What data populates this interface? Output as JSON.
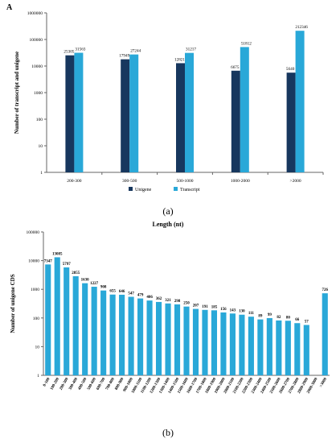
{
  "panels": [
    {
      "panel_label": "A",
      "caption": "(a)",
      "chart_data": {
        "type": "bar",
        "title": "",
        "xlabel": "",
        "ylabel": "Number of transcript and unigene",
        "yscale": "log",
        "ylim": [
          1,
          1000000
        ],
        "yticks": [
          "1",
          "10",
          "100",
          "1000",
          "10000",
          "100000",
          "1000000"
        ],
        "categories": [
          "200-300",
          "300-500",
          "500-1000",
          "1000-2000",
          ">2000"
        ],
        "series": [
          {
            "name": "Unigene",
            "color": "#17375e",
            "values": [
              25305,
              17949,
              12821,
              6675,
              5640
            ]
          },
          {
            "name": "Transcript",
            "color": "#29a8d8",
            "values": [
              31563,
              27244,
              31217,
              51812,
              212346
            ]
          }
        ],
        "legend_position": "bottom",
        "grid": false
      }
    },
    {
      "panel_label": "",
      "caption": "(b)",
      "chart_data": {
        "type": "bar",
        "title": "Length (nt)",
        "xlabel": "",
        "ylabel": "Number of unigene CDS",
        "yscale": "log",
        "ylim": [
          1,
          100000
        ],
        "yticks": [
          "1",
          "10",
          "100",
          "1000",
          "10000",
          "100000"
        ],
        "categories": [
          "0-100",
          "100-200",
          "200-300",
          "300-400",
          "400-500",
          "500-600",
          "600-700",
          "700-800",
          "800-900",
          "900-1000",
          "1000-1100",
          "1100-1200",
          "1200-1300",
          "1300-1400",
          "1400-1500",
          "1500-1600",
          "1600-1700",
          "1700-1800",
          "1800-1900",
          "1900-2000",
          "2000-2100",
          "2100-2200",
          "2200-2300",
          "2300-2400",
          "2400-2500",
          "2500-2600",
          "2600-2700",
          "2700-2800",
          "2800-2900",
          "2900-3000",
          ">3000"
        ],
        "series": [
          {
            "name": "",
            "color": "#29a8d8",
            "values": [
              7347,
              13085,
              5797,
              2855,
              1630,
              1227,
              908,
              655,
              646,
              547,
              479,
              406,
              362,
              321,
              298,
              250,
              207,
              191,
              185,
              156,
              143,
              130,
              111,
              89,
              99,
              82,
              80,
              66,
              57,
              null,
              726
            ]
          }
        ],
        "data_labels": [
          "7347",
          "13085",
          "5797",
          "2855",
          "1630",
          "1227",
          "908",
          "655",
          "646",
          "547",
          "479",
          "406",
          "362",
          "321",
          "298",
          "250",
          "207",
          "191",
          "185",
          "156",
          "143",
          "130",
          "111",
          "89",
          "99",
          "82",
          "80",
          "66",
          "57",
          "",
          "726"
        ],
        "grid": false
      }
    }
  ]
}
